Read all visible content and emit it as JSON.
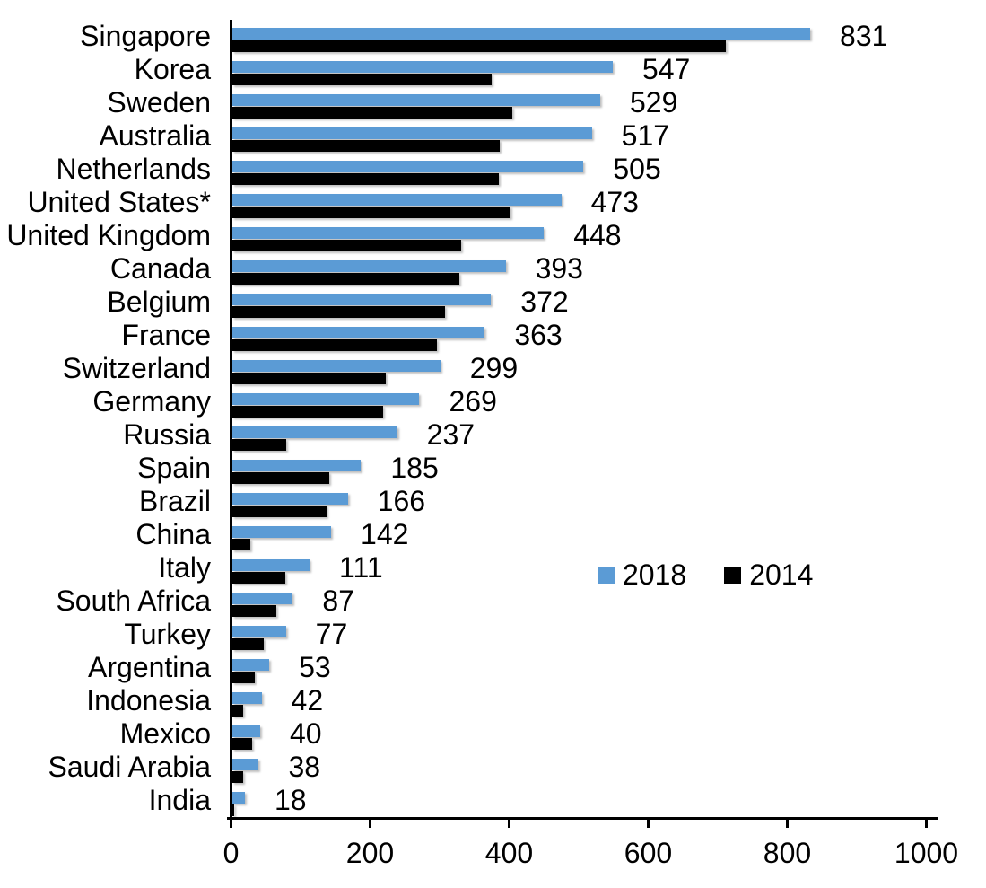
{
  "chart_data": {
    "type": "bar",
    "orientation": "horizontal",
    "title": "",
    "xlabel": "",
    "ylabel": "",
    "categories": [
      "Singapore",
      "Korea",
      "Sweden",
      "Australia",
      "Netherlands",
      "United States*",
      "United Kingdom",
      "Canada",
      "Belgium",
      "France",
      "Switzerland",
      "Germany",
      "Russia",
      "Spain",
      "Brazil",
      "China",
      "Italy",
      "South Africa",
      "Turkey",
      "Argentina",
      "Indonesia",
      "Mexico",
      "Saudi Arabia",
      "India"
    ],
    "series": [
      {
        "name": "2018",
        "color": "#5B9BD5",
        "data_labels_visible": true,
        "values": [
          831,
          547,
          529,
          517,
          505,
          473,
          448,
          393,
          372,
          363,
          299,
          269,
          237,
          185,
          166,
          142,
          111,
          87,
          77,
          53,
          42,
          40,
          38,
          18
        ]
      },
      {
        "name": "2014",
        "color": "#000000",
        "data_labels_visible": false,
        "values": [
          710,
          373,
          403,
          385,
          383,
          400,
          329,
          327,
          306,
          294,
          220,
          217,
          77,
          139,
          136,
          26,
          76,
          63,
          45,
          32,
          15,
          28,
          15,
          3
        ]
      }
    ],
    "xlim": [
      0,
      1000
    ],
    "x_tick_values": [
      0,
      200,
      400,
      600,
      800,
      1000
    ],
    "x_tick_labels": [
      "0",
      "200",
      "400",
      "600",
      "800",
      "1000"
    ],
    "grid": false,
    "legend": {
      "position": "inside-middle-right",
      "entries": [
        "2018",
        "2014"
      ]
    }
  }
}
